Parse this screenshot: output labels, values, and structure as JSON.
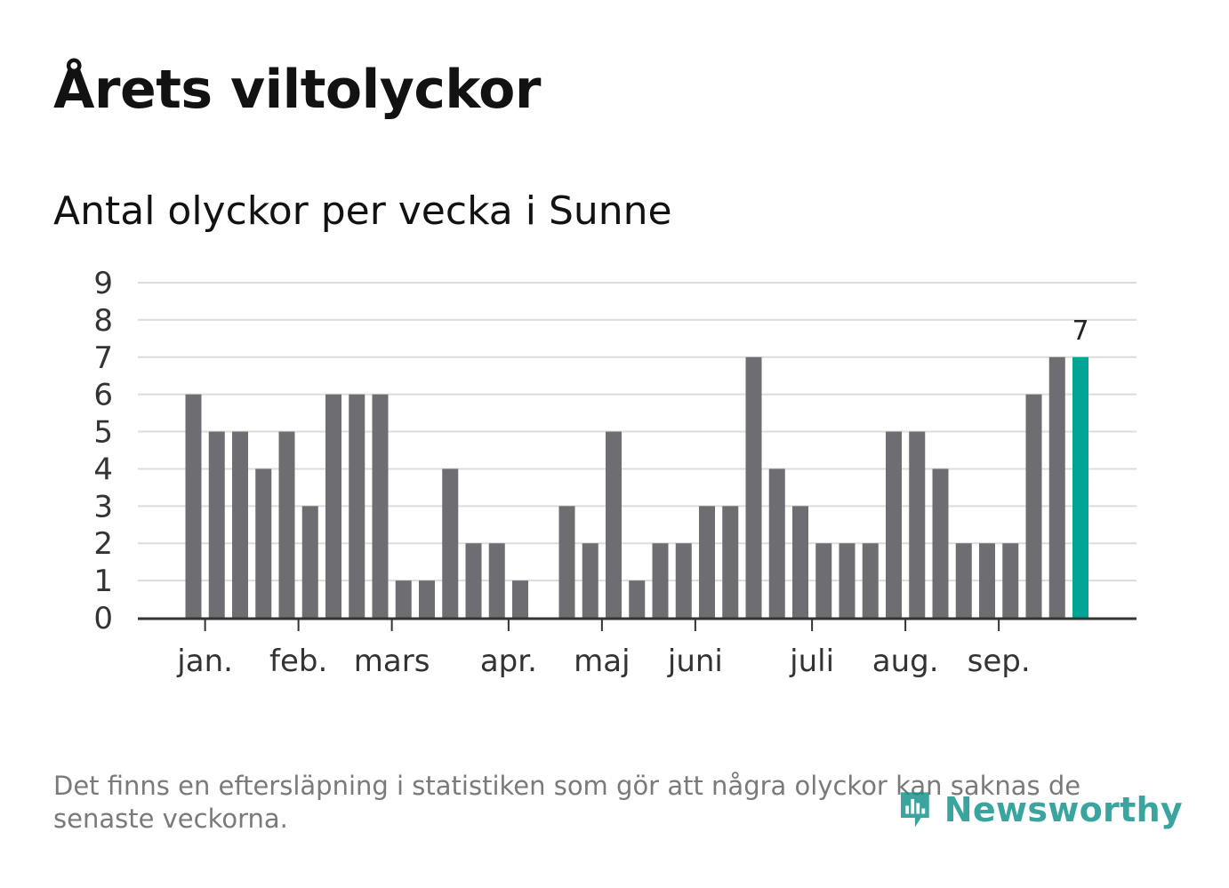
{
  "title": "Årets viltolyckor",
  "subtitle": "Antal olyckor per vecka i Sunne",
  "footnote": "Det finns en eftersläpning i statistiken som gör att några olyckor kan saknas de senaste veckorna.",
  "logo_text": "Newsworthy",
  "colors": {
    "bar": "#6d6d72",
    "highlight": "#00a596",
    "grid": "#dcdcdc",
    "axis": "#333333",
    "text": "#333333"
  },
  "chart_data": {
    "type": "bar",
    "title": "Antal olyckor per vecka i Sunne",
    "xlabel": "",
    "ylabel": "",
    "ylim": [
      0,
      9
    ],
    "yticks": [
      0,
      1,
      2,
      3,
      4,
      5,
      6,
      7,
      8,
      9
    ],
    "grid": true,
    "values": [
      6,
      5,
      5,
      4,
      5,
      3,
      6,
      6,
      6,
      1,
      1,
      4,
      2,
      2,
      1,
      0,
      3,
      2,
      5,
      1,
      2,
      2,
      3,
      3,
      7,
      4,
      3,
      2,
      2,
      2,
      5,
      5,
      4,
      2,
      2,
      2,
      6,
      7,
      7
    ],
    "highlight_index": 38,
    "highlight_label": "7",
    "month_ticks": [
      {
        "label": "jan.",
        "week": 0.5
      },
      {
        "label": "feb.",
        "week": 4.5
      },
      {
        "label": "mars",
        "week": 8.5
      },
      {
        "label": "apr.",
        "week": 13.5
      },
      {
        "label": "maj",
        "week": 17.5
      },
      {
        "label": "juni",
        "week": 21.5
      },
      {
        "label": "juli",
        "week": 26.5
      },
      {
        "label": "aug.",
        "week": 30.5
      },
      {
        "label": "sep.",
        "week": 34.5
      }
    ]
  }
}
